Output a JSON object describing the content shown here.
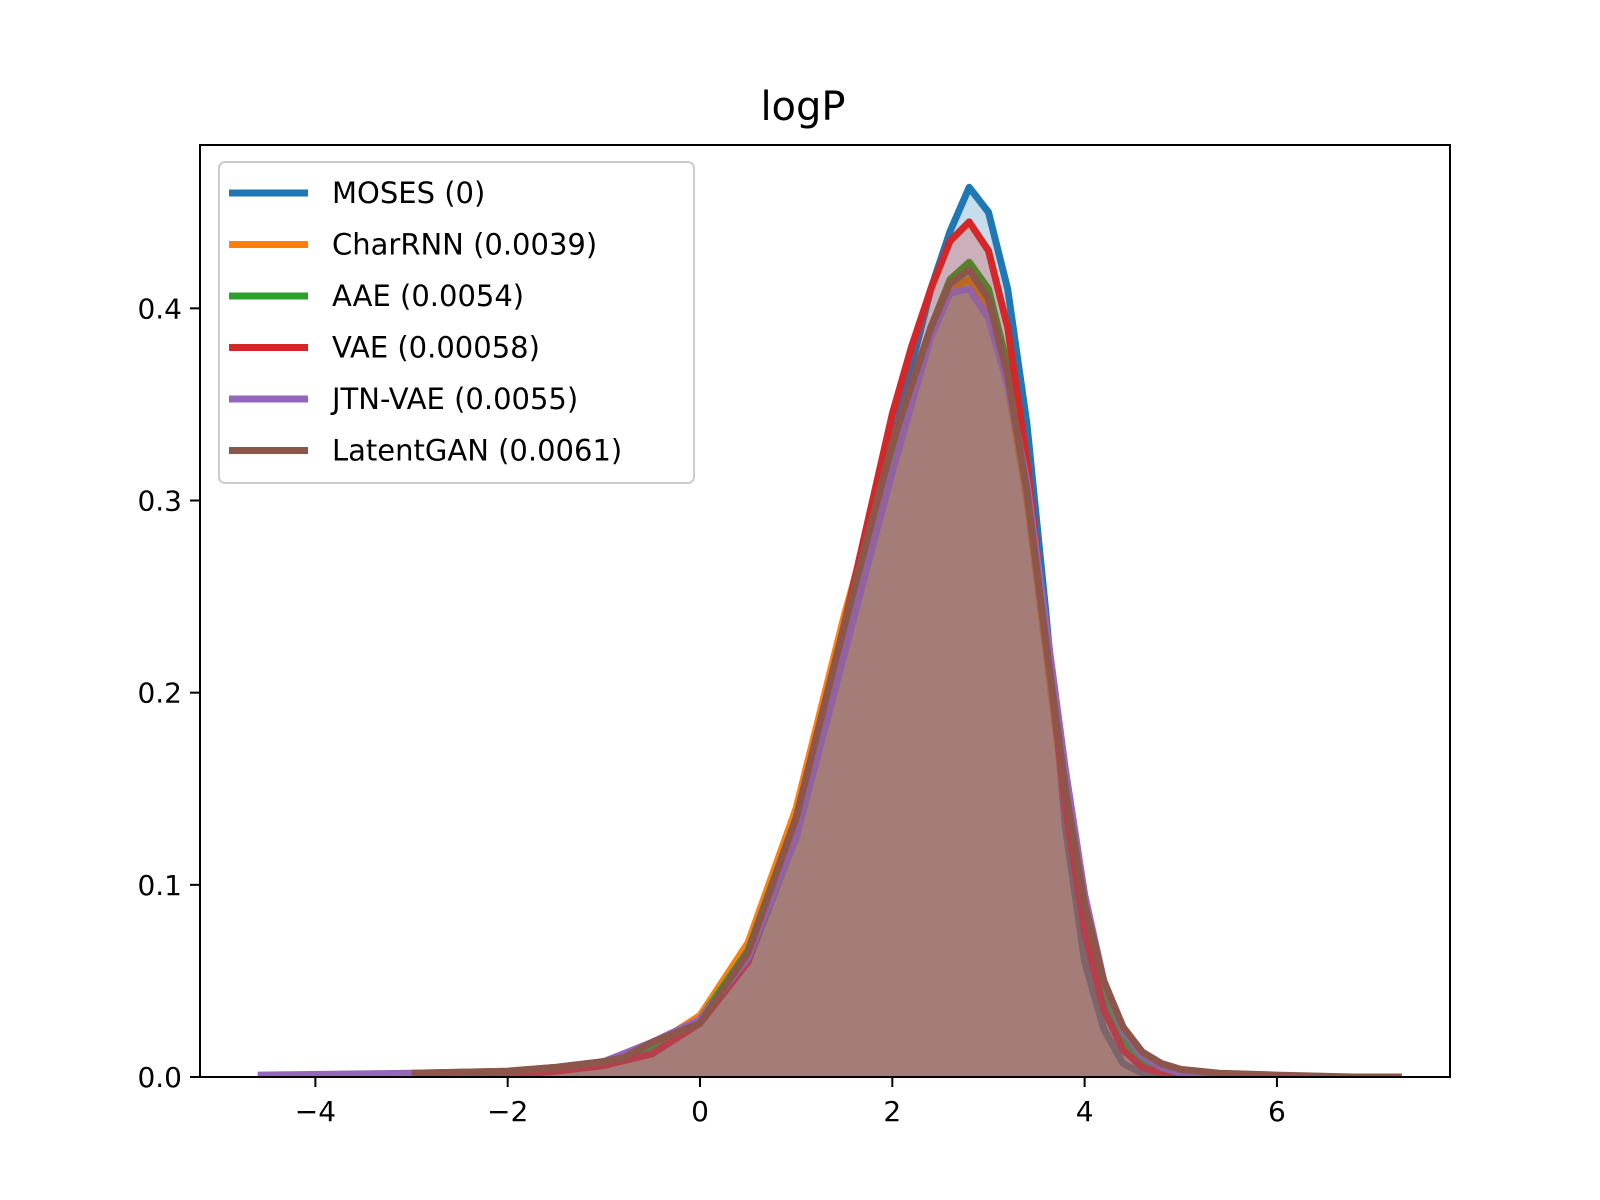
{
  "chart_data": {
    "type": "area",
    "title": "logP",
    "xlabel": "",
    "ylabel": "",
    "xlim": [
      -5.2,
      7.8
    ],
    "ylim": [
      0,
      0.485
    ],
    "xticks": [
      -4,
      -2,
      0,
      2,
      4,
      6
    ],
    "xtick_labels": [
      "−4",
      "−2",
      "0",
      "2",
      "4",
      "6"
    ],
    "yticks": [
      0.0,
      0.1,
      0.2,
      0.3,
      0.4
    ],
    "ytick_labels": [
      "0.0",
      "0.1",
      "0.2",
      "0.3",
      "0.4"
    ],
    "grid": false,
    "legend_position": "upper-left",
    "series": [
      {
        "name": "MOSES (0)",
        "color": "#1f77b4",
        "x": [
          -3.0,
          -2.0,
          -1.5,
          -1.0,
          -0.5,
          0.0,
          0.5,
          1.0,
          1.5,
          2.0,
          2.2,
          2.4,
          2.6,
          2.8,
          3.0,
          3.2,
          3.4,
          3.6,
          3.8,
          4.0,
          4.2,
          4.4,
          4.6,
          4.8
        ],
        "y": [
          0.0,
          0.001,
          0.003,
          0.006,
          0.013,
          0.028,
          0.06,
          0.125,
          0.22,
          0.33,
          0.37,
          0.41,
          0.44,
          0.463,
          0.45,
          0.41,
          0.34,
          0.24,
          0.13,
          0.06,
          0.025,
          0.007,
          0.002,
          0.0
        ]
      },
      {
        "name": "CharRNN (0.0039)",
        "color": "#ff7f0e",
        "x": [
          -3.0,
          -2.0,
          -1.5,
          -1.0,
          -0.5,
          0.0,
          0.5,
          1.0,
          1.5,
          2.0,
          2.2,
          2.4,
          2.6,
          2.8,
          3.0,
          3.2,
          3.4,
          3.6,
          3.8,
          4.0,
          4.2,
          4.4,
          4.6,
          4.8,
          5.0,
          5.4,
          6.0,
          6.8
        ],
        "y": [
          0.0,
          0.002,
          0.004,
          0.008,
          0.016,
          0.032,
          0.07,
          0.14,
          0.24,
          0.33,
          0.36,
          0.39,
          0.41,
          0.415,
          0.4,
          0.36,
          0.3,
          0.22,
          0.14,
          0.08,
          0.04,
          0.018,
          0.008,
          0.004,
          0.002,
          0.001,
          0.0,
          0.0
        ]
      },
      {
        "name": "AAE (0.0054)",
        "color": "#2ca02c",
        "x": [
          -3.0,
          -2.0,
          -1.5,
          -1.0,
          -0.5,
          0.0,
          0.5,
          1.0,
          1.5,
          2.0,
          2.2,
          2.4,
          2.6,
          2.8,
          3.0,
          3.2,
          3.4,
          3.6,
          3.8,
          4.0,
          4.2,
          4.4,
          4.6,
          4.8,
          5.0,
          5.4,
          6.0,
          6.8
        ],
        "y": [
          0.0,
          0.002,
          0.004,
          0.008,
          0.016,
          0.03,
          0.066,
          0.135,
          0.23,
          0.32,
          0.355,
          0.39,
          0.415,
          0.424,
          0.41,
          0.37,
          0.31,
          0.23,
          0.15,
          0.085,
          0.042,
          0.02,
          0.009,
          0.004,
          0.002,
          0.001,
          0.0,
          0.0
        ]
      },
      {
        "name": "VAE (0.00058)",
        "color": "#d62728",
        "x": [
          -3.0,
          -2.0,
          -1.5,
          -1.0,
          -0.5,
          0.0,
          0.5,
          1.0,
          1.5,
          2.0,
          2.2,
          2.4,
          2.6,
          2.8,
          3.0,
          3.2,
          3.4,
          3.6,
          3.8,
          4.0,
          4.2,
          4.4,
          4.6,
          4.8,
          5.0,
          5.4
        ],
        "y": [
          0.0,
          0.001,
          0.003,
          0.006,
          0.012,
          0.028,
          0.06,
          0.13,
          0.235,
          0.345,
          0.38,
          0.41,
          0.435,
          0.445,
          0.43,
          0.39,
          0.32,
          0.23,
          0.14,
          0.075,
          0.035,
          0.014,
          0.005,
          0.002,
          0.001,
          0.0
        ]
      },
      {
        "name": "JTN-VAE (0.0055)",
        "color": "#9467bd",
        "x": [
          -4.6,
          -3.0,
          -2.0,
          -1.5,
          -1.0,
          -0.5,
          0.0,
          0.5,
          1.0,
          1.5,
          2.0,
          2.2,
          2.4,
          2.6,
          2.8,
          3.0,
          3.2,
          3.4,
          3.6,
          3.8,
          4.0,
          4.2,
          4.4,
          4.6,
          4.8,
          5.0,
          5.4,
          6.0
        ],
        "y": [
          0.001,
          0.002,
          0.003,
          0.005,
          0.008,
          0.018,
          0.03,
          0.062,
          0.125,
          0.22,
          0.315,
          0.35,
          0.385,
          0.408,
          0.41,
          0.395,
          0.36,
          0.31,
          0.235,
          0.16,
          0.095,
          0.05,
          0.024,
          0.011,
          0.005,
          0.002,
          0.001,
          0.0
        ]
      },
      {
        "name": "LatentGAN (0.0061)",
        "color": "#8c564b",
        "x": [
          -3.0,
          -2.0,
          -1.5,
          -1.0,
          -0.8,
          -0.5,
          0.0,
          0.5,
          1.0,
          1.5,
          2.0,
          2.2,
          2.4,
          2.6,
          2.8,
          3.0,
          3.2,
          3.4,
          3.6,
          3.8,
          4.0,
          4.2,
          4.4,
          4.6,
          4.8,
          5.0,
          5.4,
          6.0,
          6.8,
          7.3
        ],
        "y": [
          0.002,
          0.003,
          0.005,
          0.008,
          0.01,
          0.018,
          0.028,
          0.065,
          0.135,
          0.235,
          0.33,
          0.36,
          0.39,
          0.413,
          0.42,
          0.405,
          0.365,
          0.305,
          0.225,
          0.15,
          0.09,
          0.05,
          0.026,
          0.013,
          0.007,
          0.004,
          0.002,
          0.001,
          0.0,
          0.0
        ]
      }
    ]
  }
}
